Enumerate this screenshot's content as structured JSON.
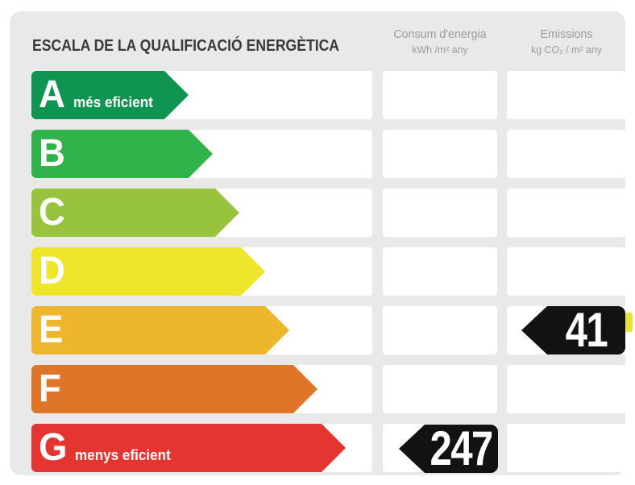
{
  "title": "ESCALA DE LA QUALIFICACIÓ ENERGÈTICA",
  "columns": {
    "consum": {
      "label": "Consum d'energia",
      "unit": "kWh /m²  any"
    },
    "emissions": {
      "label": "Emissions",
      "unit": "kg CO₂ / m²  any"
    }
  },
  "scale": {
    "rows": [
      {
        "grade": "A",
        "note": "més eficient",
        "color": "#0f9551"
      },
      {
        "grade": "B",
        "note": "",
        "color": "#2fb34a"
      },
      {
        "grade": "C",
        "note": "",
        "color": "#97c43c"
      },
      {
        "grade": "D",
        "note": "",
        "color": "#ede62b"
      },
      {
        "grade": "E",
        "note": "",
        "color": "#eeb62c"
      },
      {
        "grade": "F",
        "note": "",
        "color": "#df7529"
      },
      {
        "grade": "G",
        "note": "menys eficient",
        "color": "#e43530"
      }
    ]
  },
  "values": {
    "consum": {
      "value": "247",
      "grade": "G",
      "badge_color": "#121212",
      "text_color": "#ffffff"
    },
    "emissions": {
      "value": "41",
      "grade": "E",
      "badge_color": "#121212",
      "text_color": "#ffffff"
    }
  },
  "edge_marker": {
    "grade": "E",
    "color": "#e7e33a"
  },
  "panel": {
    "background": "#e9e9e9",
    "header_text_color": "#9b9b9b",
    "title_color": "#3a3a39"
  },
  "chart_data": {
    "type": "bar",
    "title": "ESCALA DE LA QUALIFICACIÓ ENERGÈTICA",
    "categories": [
      "A",
      "B",
      "C",
      "D",
      "E",
      "F",
      "G"
    ],
    "category_notes": {
      "A": "més eficient",
      "G": "menys eficient"
    },
    "scale_colors": [
      "#0f9551",
      "#2fb34a",
      "#97c43c",
      "#ede62b",
      "#eeb62c",
      "#df7529",
      "#e43530"
    ],
    "series": [
      {
        "name": "Consum d'energia (kWh/m² any)",
        "grade": "G",
        "value": 247
      },
      {
        "name": "Emissions (kg CO₂/m² any)",
        "grade": "E",
        "value": 41
      }
    ],
    "legend_position": "none",
    "grid": false
  }
}
